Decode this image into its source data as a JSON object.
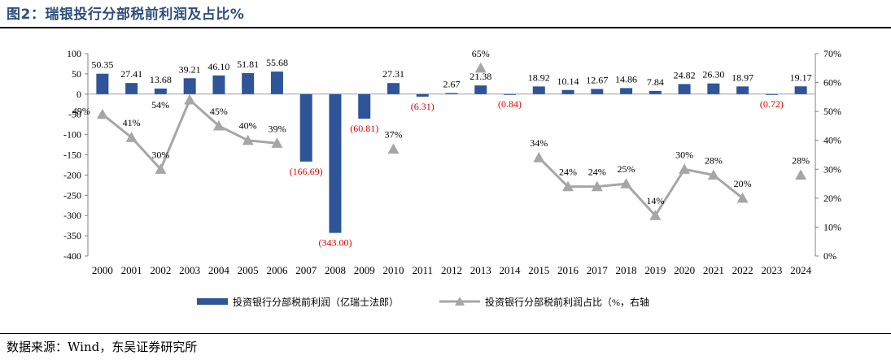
{
  "figure": {
    "title": "图2：瑞银投行分部税前利润及占比%",
    "source": "数据来源：Wind，东吴证券研究所"
  },
  "chart_data": {
    "type": "bar+line",
    "categories": [
      "2000",
      "2001",
      "2002",
      "2003",
      "2004",
      "2005",
      "2006",
      "2007",
      "2008",
      "2009",
      "2010",
      "2011",
      "2012",
      "2013",
      "2014",
      "2015",
      "2016",
      "2017",
      "2018",
      "2019",
      "2020",
      "2021",
      "2022",
      "2023",
      "2024"
    ],
    "series": [
      {
        "name": "投资银行分部税前利润（亿瑞士法郎）",
        "type": "bar",
        "axis": "left",
        "color": "#2e5597",
        "values": [
          50.35,
          27.41,
          13.68,
          39.21,
          46.1,
          51.81,
          55.68,
          -166.69,
          -343.0,
          -60.81,
          27.31,
          -6.31,
          2.67,
          21.38,
          -0.84,
          18.92,
          10.14,
          12.67,
          14.86,
          7.84,
          24.82,
          26.3,
          18.97,
          -0.72,
          19.17
        ],
        "labels": [
          "50.35",
          "27.41",
          "13.68",
          "39.21",
          "46.10",
          "51.81",
          "55.68",
          "(166.69)",
          "(343.00)",
          "(60.81)",
          "27.31",
          "(6.31)",
          "2.67",
          "21.38",
          "(0.84)",
          "18.92",
          "10.14",
          "12.67",
          "14.86",
          "7.84",
          "24.82",
          "26.30",
          "18.97",
          "(0.72)",
          "19.17"
        ],
        "negative_label_color": "#e00000"
      },
      {
        "name": "投资银行分部税前利润占比（%，右轴",
        "type": "line",
        "axis": "right",
        "color": "#a6a6a6",
        "values": [
          49,
          41,
          30,
          54,
          45,
          40,
          39,
          null,
          null,
          null,
          37,
          null,
          null,
          65,
          null,
          34,
          24,
          24,
          25,
          14,
          30,
          28,
          20,
          null,
          28
        ],
        "labels": [
          "49%",
          "41%",
          "30%",
          "54%",
          "45%",
          "40%",
          "39%",
          null,
          null,
          null,
          "37%",
          null,
          null,
          "65%",
          null,
          "34%",
          "24%",
          "24%",
          "25%",
          "14%",
          "30%",
          "28%",
          "20%",
          null,
          "28%"
        ]
      }
    ],
    "y_left": {
      "min": -400,
      "max": 100,
      "ticks": [
        "100",
        "50",
        "0",
        "-50",
        "-100",
        "-150",
        "-200",
        "-250",
        "-300",
        "-350",
        "-400"
      ]
    },
    "y_right": {
      "min": 0,
      "max": 70,
      "ticks": [
        "70%",
        "60%",
        "50%",
        "40%",
        "30%",
        "20%",
        "10%",
        "0%"
      ]
    },
    "grid": false,
    "legend_position": "bottom"
  }
}
